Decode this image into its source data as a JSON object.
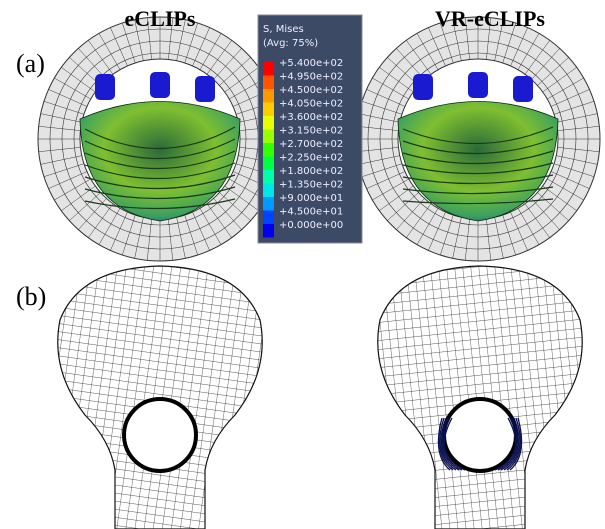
{
  "panels": {
    "left_title": "eCLIPs",
    "right_title": "VR-eCLIPs",
    "label_a": "(a)",
    "label_b": "(b)"
  },
  "legend": {
    "title": "S, Mises",
    "subtitle": "(Avg: 75%)",
    "labels": [
      "+5.400e+02",
      "+4.950e+02",
      "+4.500e+02",
      "+4.050e+02",
      "+3.600e+02",
      "+3.150e+02",
      "+2.700e+02",
      "+2.250e+02",
      "+1.800e+02",
      "+1.350e+02",
      "+9.000e+01",
      "+4.500e+01",
      "+0.000e+00"
    ],
    "colors": [
      "#ff0000",
      "#ff5500",
      "#ff9900",
      "#ffcc00",
      "#e6ff00",
      "#99ff00",
      "#33ff00",
      "#00ff44",
      "#00ffaa",
      "#00e6e6",
      "#0099ff",
      "#0044ff",
      "#0000ee"
    ]
  }
}
